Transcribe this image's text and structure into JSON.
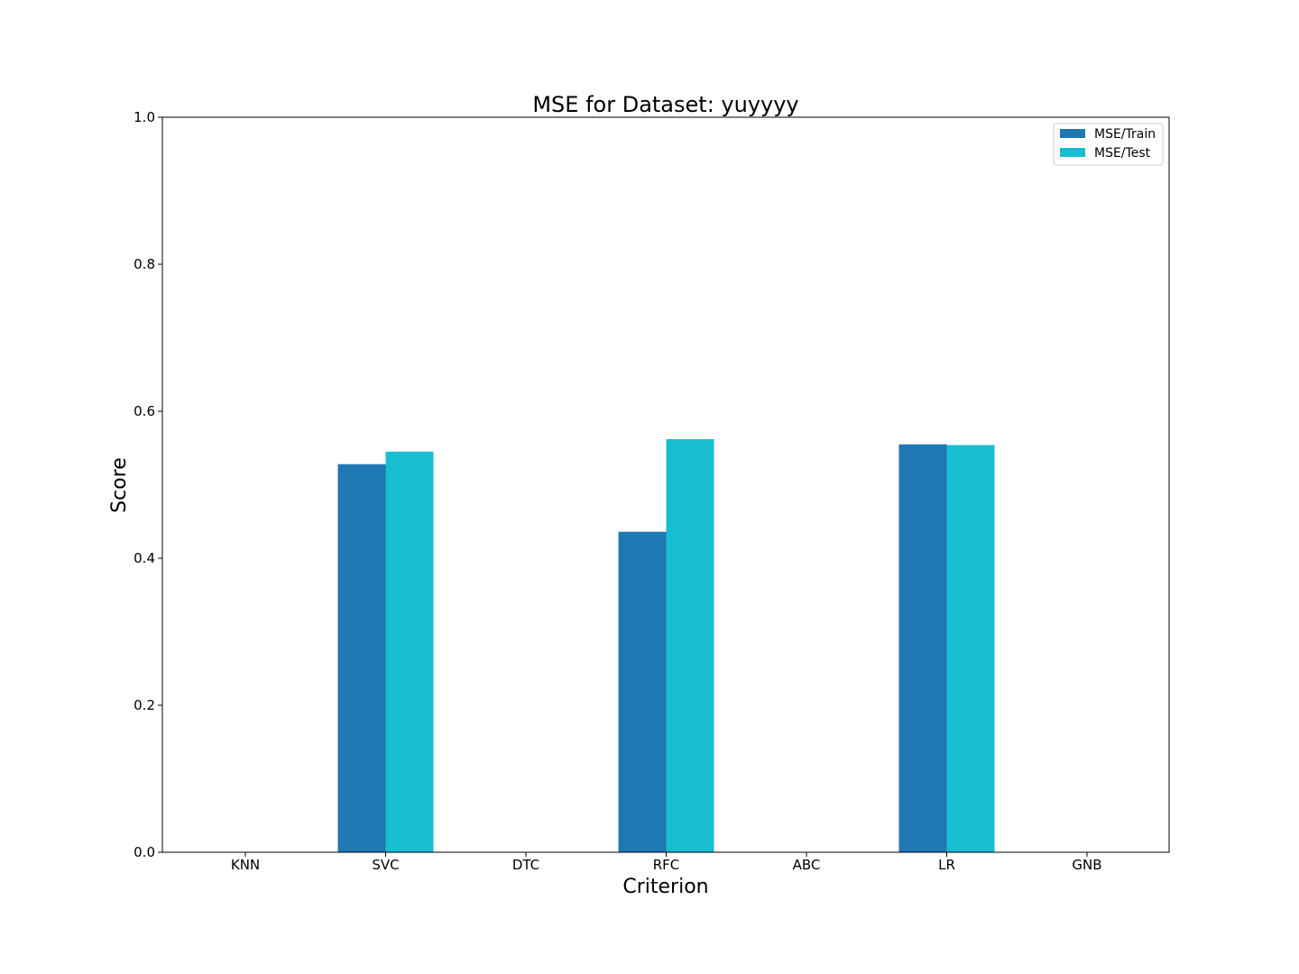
{
  "chart_data": {
    "type": "bar",
    "title": "MSE for Dataset: yuyyyy",
    "xlabel": "Criterion",
    "ylabel": "Score",
    "ylim": [
      0,
      1.0
    ],
    "yticks": [
      "0.0",
      "0.2",
      "0.4",
      "0.6",
      "0.8",
      "1.0"
    ],
    "categories": [
      "KNN",
      "SVC",
      "DTC",
      "RFC",
      "ABC",
      "LR",
      "GNB"
    ],
    "series": [
      {
        "name": "MSE/Train",
        "color": "#1f77b4",
        "values": [
          null,
          0.528,
          null,
          0.436,
          null,
          0.555,
          null
        ]
      },
      {
        "name": "MSE/Test",
        "color": "#17becf",
        "values": [
          null,
          0.545,
          null,
          0.562,
          null,
          0.554,
          null
        ]
      }
    ],
    "grid": false,
    "legend_position": "top-right"
  }
}
